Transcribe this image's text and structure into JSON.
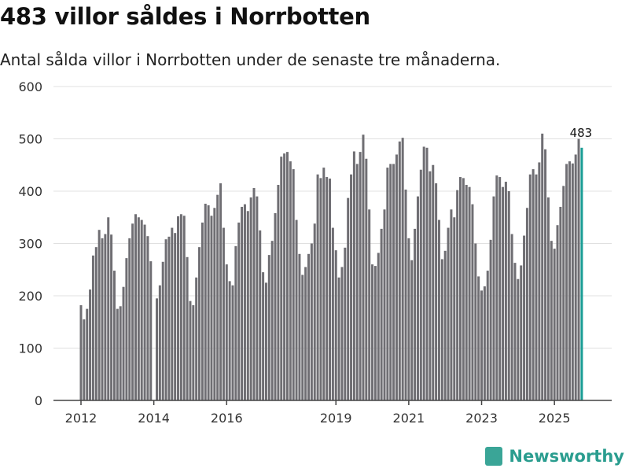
{
  "title": "483 villor såldes i Norrbotten",
  "subtitle": "Antal sålda villor i Norrbotten under de senaste tre månaderna.",
  "brand": "Newsworthy",
  "colors": {
    "bar": "#6f6e73",
    "highlight": "#1a9e96",
    "grid": "#e0e0e0",
    "axis": "#444444"
  },
  "chart_data": {
    "type": "bar",
    "title": "483 villor såldes i Norrbotten",
    "xlabel": "",
    "ylabel": "",
    "ylim": [
      0,
      600
    ],
    "yticks": [
      0,
      100,
      200,
      300,
      400,
      500,
      600
    ],
    "xticks": [
      "2012",
      "2014",
      "2016",
      "2019",
      "2021",
      "2023",
      "2025"
    ],
    "start_month": "2012-01",
    "values": [
      182,
      155,
      175,
      212,
      277,
      293,
      326,
      310,
      318,
      350,
      317,
      248,
      175,
      180,
      217,
      272,
      310,
      338,
      356,
      350,
      345,
      336,
      314,
      266,
      null,
      195,
      220,
      265,
      308,
      313,
      330,
      320,
      352,
      356,
      353,
      274,
      190,
      182,
      235,
      293,
      340,
      376,
      373,
      353,
      368,
      393,
      415,
      330,
      260,
      228,
      220,
      295,
      340,
      370,
      375,
      362,
      388,
      406,
      390,
      325,
      245,
      225,
      278,
      305,
      358,
      412,
      466,
      472,
      475,
      457,
      442,
      345,
      280,
      240,
      255,
      280,
      300,
      338,
      432,
      425,
      445,
      427,
      424,
      330,
      287,
      235,
      255,
      292,
      387,
      432,
      476,
      452,
      475,
      508,
      462,
      365,
      260,
      257,
      282,
      328,
      365,
      445,
      452,
      452,
      470,
      495,
      502,
      403,
      310,
      268,
      328,
      390,
      441,
      485,
      483,
      438,
      450,
      415,
      345,
      270,
      286,
      330,
      365,
      350,
      402,
      427,
      425,
      412,
      408,
      375,
      300,
      237,
      210,
      218,
      248,
      307,
      390,
      430,
      427,
      408,
      418,
      400,
      318,
      263,
      232,
      258,
      315,
      368,
      432,
      442,
      432,
      455,
      510,
      480,
      388,
      305,
      290,
      335,
      370,
      410,
      452,
      457,
      453,
      470,
      500,
      483
    ],
    "annotation": "483"
  }
}
